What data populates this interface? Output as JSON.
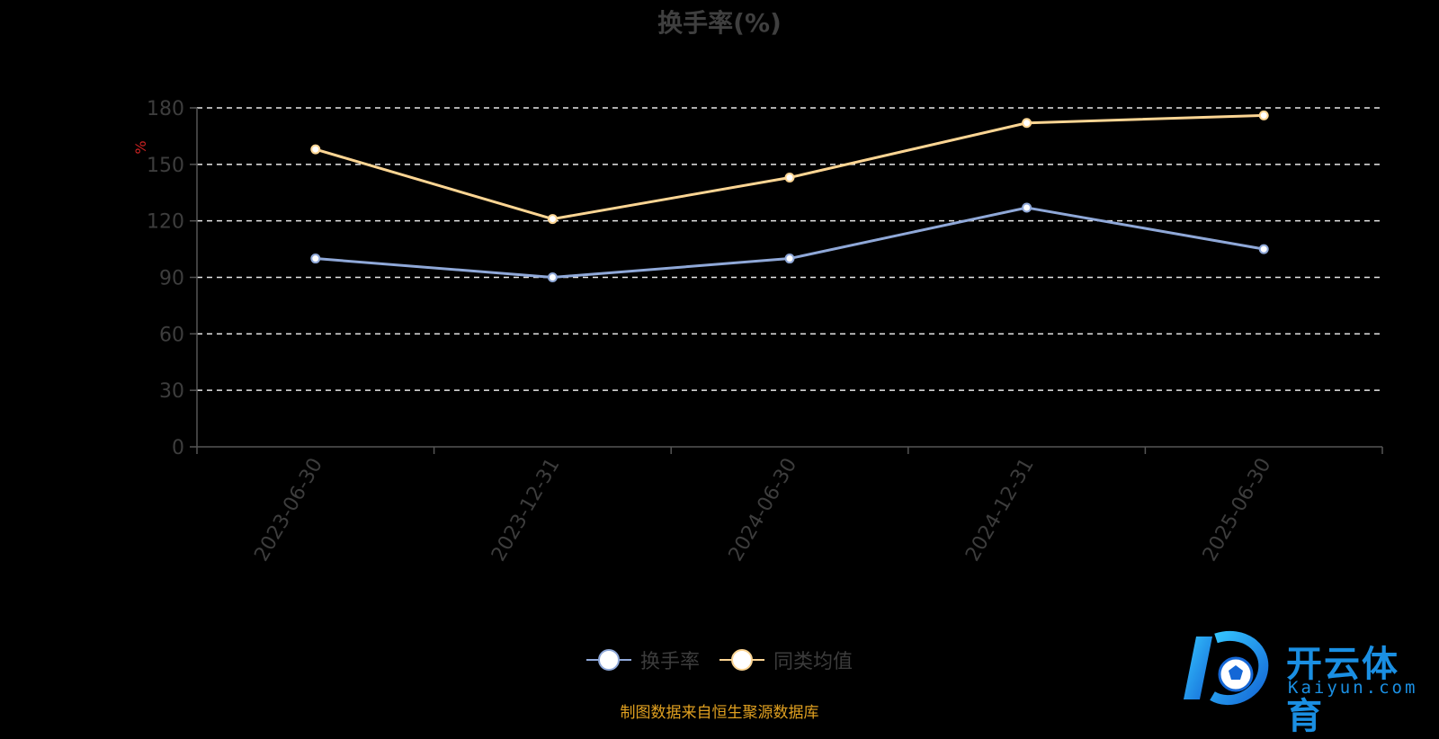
{
  "title": "换手率(%)",
  "source_note": "制图数据来自恒生聚源数据库",
  "logo": {
    "brand_cn": "开云体育",
    "brand_en": "Kaiyun.com"
  },
  "chart_data": {
    "type": "line",
    "title": "换手率(%)",
    "ylabel": "%",
    "categories": [
      "2023-06-30",
      "2023-12-31",
      "2024-06-30",
      "2024-12-31",
      "2025-06-30"
    ],
    "ylim": [
      0,
      180
    ],
    "yticks": [
      "0",
      "30",
      "60",
      "90",
      "120",
      "150",
      "180"
    ],
    "grid": true,
    "legend_position": "bottom",
    "series": [
      {
        "name": "换手率",
        "color": "#8fa8d8",
        "values": [
          100,
          90,
          100,
          127,
          105
        ]
      },
      {
        "name": "同类均值",
        "color": "#fcd593",
        "values": [
          158,
          121,
          143,
          172,
          176
        ]
      }
    ]
  }
}
